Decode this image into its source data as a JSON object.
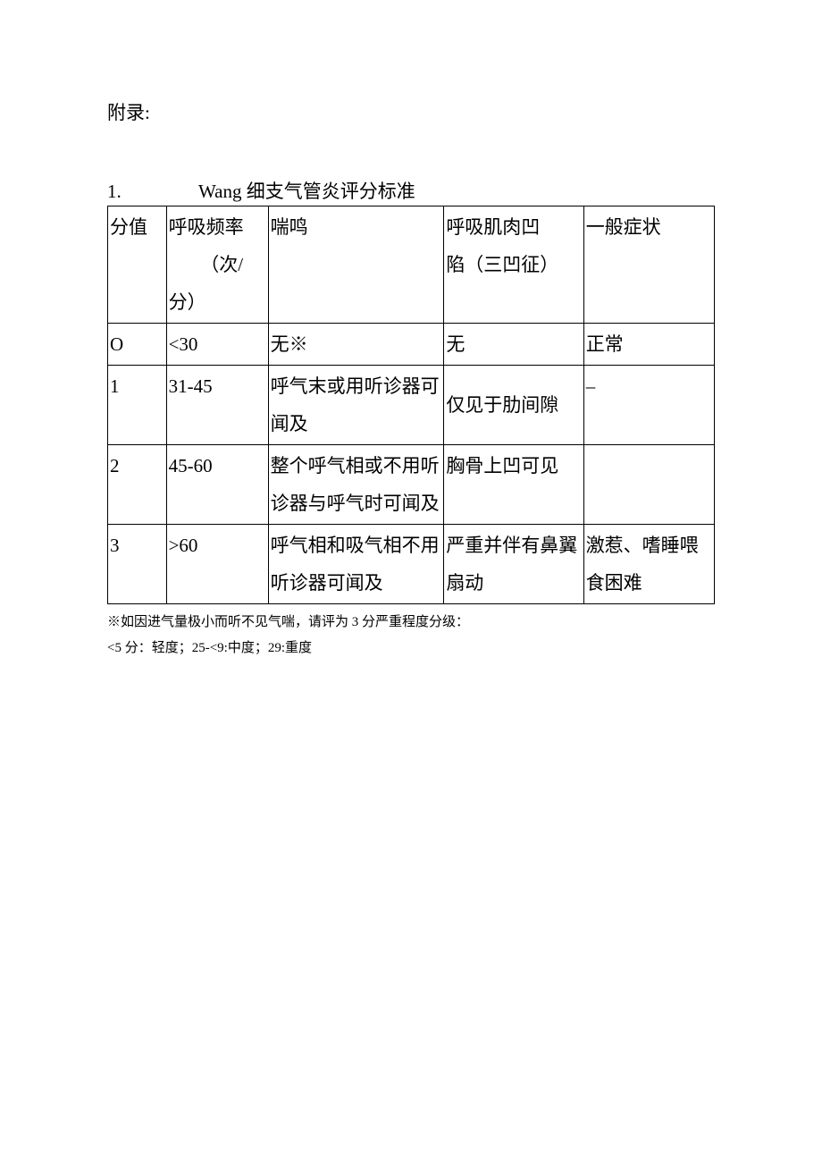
{
  "appendix_label": "附录:",
  "title_number": "1.",
  "title_text": "Wang 细支气管炎评分标准",
  "table": {
    "header": {
      "score": "分值",
      "rate_label": "呼吸频率",
      "rate_unit": "（次/分）",
      "wheeze": "喘鸣",
      "retraction_line1": "呼吸肌肉凹",
      "retraction_line2": "陷（三凹征）",
      "general": "一般症状"
    },
    "rows": [
      {
        "score": "O",
        "rate": "<30",
        "wheeze": "无※",
        "retraction": "无",
        "general": "正常"
      },
      {
        "score": "1",
        "rate": "31-45",
        "wheeze": "呼气末或用听诊器可闻及",
        "retraction": "仅见于肋间隙",
        "general": "–"
      },
      {
        "score": "2",
        "rate": "45-60",
        "wheeze": "整个呼气相或不用听诊器与呼气时可闻及",
        "retraction": "胸骨上凹可见",
        "general": ""
      },
      {
        "score": "3",
        "rate": ">60",
        "wheeze": "呼气相和吸气相不用听诊器可闻及",
        "retraction": "严重并伴有鼻翼扇动",
        "general": "激惹、嗜睡喂食困难"
      }
    ]
  },
  "footnote_line1": "※如因进气量极小而听不见气喘，请评为 3 分严重程度分级：",
  "footnote_line2": "<5 分：轻度；25-<9:中度；29:重度"
}
